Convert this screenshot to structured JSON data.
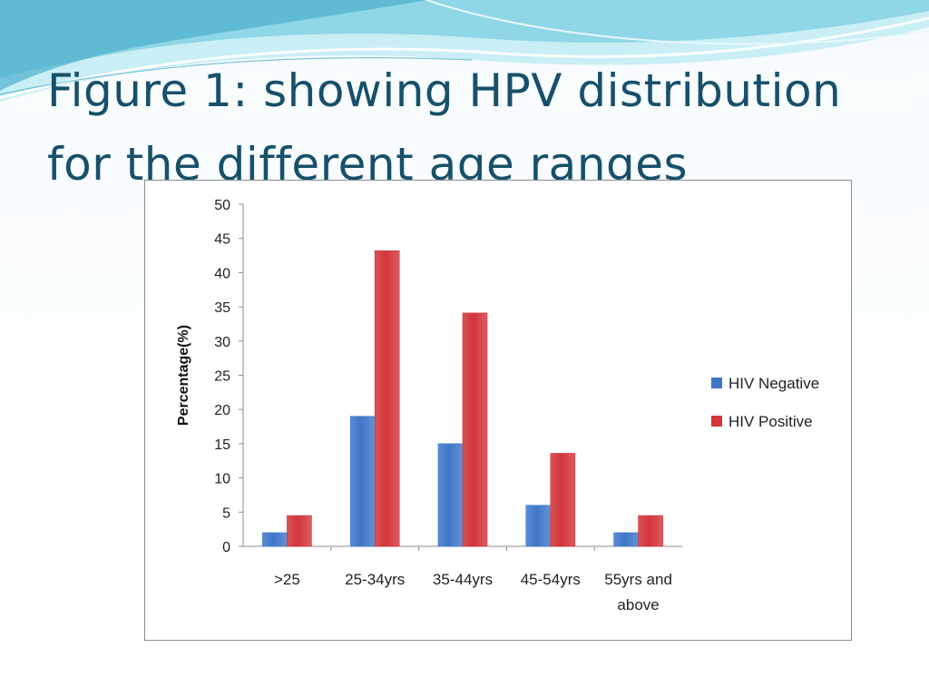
{
  "slide": {
    "title_lines": [
      "Figure 1: showing HPV distribution",
      "for the different age ranges"
    ]
  },
  "colors": {
    "title": "#17506a",
    "wave_light": "#bfe9f2",
    "wave_mid": "#7fd0e3",
    "wave_dark": "#2f9fc0",
    "hiv_negative": "#3e77c9",
    "hiv_positive": "#d2353a"
  },
  "chart_data": {
    "type": "bar",
    "categories": [
      ">25",
      "25-34yrs",
      "35-44yrs",
      "45-54yrs",
      "55yrs and above"
    ],
    "category_lines": [
      [
        ">25"
      ],
      [
        "25-34yrs"
      ],
      [
        "35-44yrs"
      ],
      [
        "45-54yrs"
      ],
      [
        "55yrs and",
        "above"
      ]
    ],
    "series": [
      {
        "name": "HIV Negative",
        "values": [
          2,
          19,
          15,
          6,
          2
        ]
      },
      {
        "name": "HIV Positive",
        "values": [
          4.5,
          43.2,
          34.1,
          13.6,
          4.5
        ]
      }
    ],
    "title": "",
    "xlabel": "",
    "ylabel": "Percentage(%)",
    "ylim": [
      0,
      50
    ],
    "yticks": [
      0,
      5,
      10,
      15,
      20,
      25,
      30,
      35,
      40,
      45,
      50
    ],
    "grid": false,
    "legend_position": "right"
  }
}
